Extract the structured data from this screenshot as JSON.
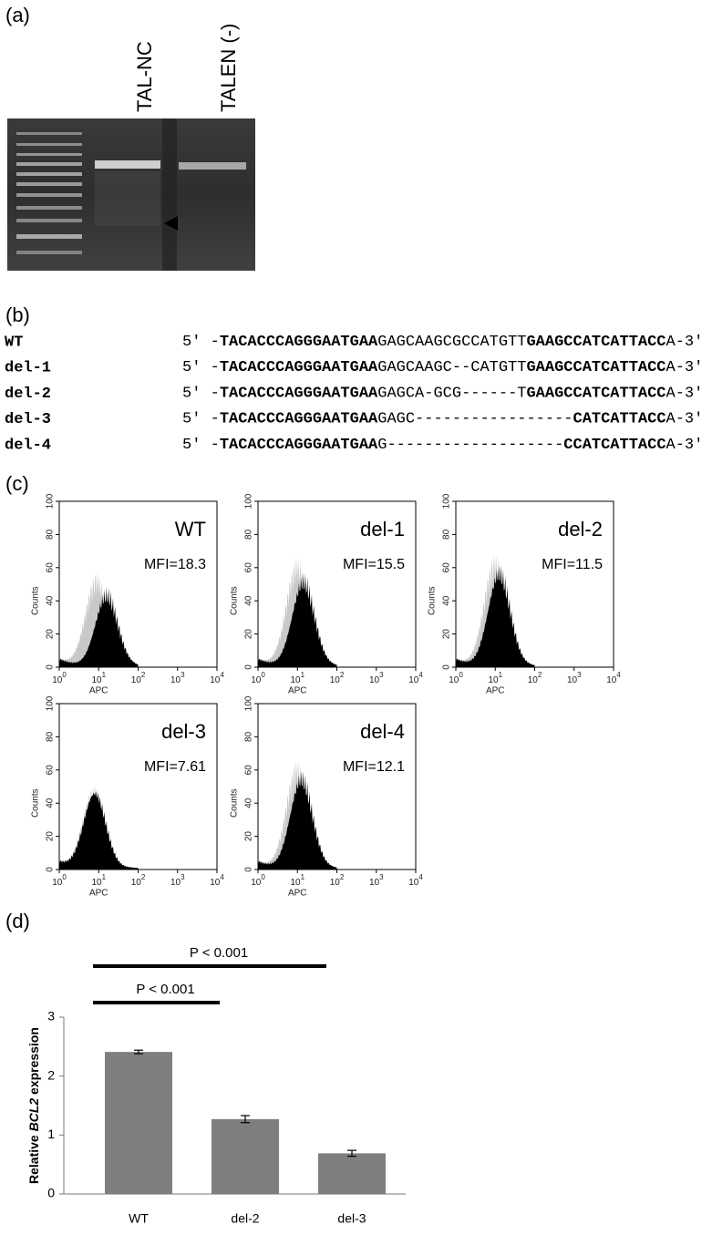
{
  "panel_labels": [
    "(a)",
    "(b)",
    "(c)",
    "(d)"
  ],
  "gel": {
    "lanes": [
      "TAL-NC",
      "TALEN (-)"
    ]
  },
  "sequences": [
    {
      "name": "WT",
      "segments": [
        {
          "text": "5′ -",
          "bold": false
        },
        {
          "text": "TACACCCAGGGAATGAA",
          "bold": true
        },
        {
          "text": "GAGCAAGCGCCATGTT",
          "bold": false
        },
        {
          "text": "GAAGCCATCATTACC",
          "bold": true
        },
        {
          "text": "A-3′",
          "bold": false
        }
      ]
    },
    {
      "name": "del-1",
      "segments": [
        {
          "text": "5′ -",
          "bold": false
        },
        {
          "text": "TACACCCAGGGAATGAA",
          "bold": true
        },
        {
          "text": "GAGCAAGC--CATGTT",
          "bold": false
        },
        {
          "text": "GAAGCCATCATTACC",
          "bold": true
        },
        {
          "text": "A-3′",
          "bold": false
        }
      ]
    },
    {
      "name": "del-2",
      "segments": [
        {
          "text": "5′ -",
          "bold": false
        },
        {
          "text": "TACACCCAGGGAATGAA",
          "bold": true
        },
        {
          "text": "GAGCA-GCG------T",
          "bold": false
        },
        {
          "text": "GAAGCCATCATTACC",
          "bold": true
        },
        {
          "text": "A-3′",
          "bold": false
        }
      ]
    },
    {
      "name": "del-3",
      "segments": [
        {
          "text": "5′ -",
          "bold": false
        },
        {
          "text": "TACACCCAGGGAATGAA",
          "bold": true
        },
        {
          "text": "GAGC-----------------",
          "bold": false
        },
        {
          "text": "CATCATTACC",
          "bold": true
        },
        {
          "text": "A-3′",
          "bold": false
        }
      ]
    },
    {
      "name": "del-4",
      "segments": [
        {
          "text": "5′ -",
          "bold": false
        },
        {
          "text": "TACACCCAGGGAATGAA",
          "bold": true
        },
        {
          "text": "G-------------------",
          "bold": false
        },
        {
          "text": "CCATCATTACC",
          "bold": true
        },
        {
          "text": "A-3′",
          "bold": false
        }
      ]
    }
  ],
  "flow": {
    "y_axis_label": "Counts",
    "x_axis_label": "APC",
    "yticks": [
      0,
      20,
      40,
      60,
      80,
      100
    ],
    "xticks": [
      {
        "base": "10",
        "exp": "0"
      },
      {
        "base": "10",
        "exp": "1"
      },
      {
        "base": "10",
        "exp": "2"
      },
      {
        "base": "10",
        "exp": "3"
      },
      {
        "base": "10",
        "exp": "4"
      }
    ],
    "panels": [
      {
        "name": "WT",
        "mfi": "MFI=18.3"
      },
      {
        "name": "del-1",
        "mfi": "MFI=15.5"
      },
      {
        "name": "del-2",
        "mfi": "MFI=11.5"
      },
      {
        "name": "del-3",
        "mfi": "MFI=7.61"
      },
      {
        "name": "del-4",
        "mfi": "MFI=12.1"
      }
    ]
  },
  "chart_data": {
    "type": "bar",
    "ylabel": [
      {
        "text": "Relative ",
        "italic": false
      },
      {
        "text": "BCL2",
        "italic": true
      },
      {
        "text": " expression",
        "italic": false
      }
    ],
    "categories": [
      "WT",
      "del-2",
      "del-3"
    ],
    "values": [
      2.41,
      1.27,
      0.69
    ],
    "errors": [
      0.03,
      0.06,
      0.05
    ],
    "color": "#7f7f7f",
    "ylim": [
      0,
      3
    ],
    "yticks": [
      0,
      1,
      2,
      3
    ],
    "annotations": [
      {
        "text": "P < 0.001",
        "from": 0,
        "to": 1
      },
      {
        "text": "P < 0.001",
        "from": 0,
        "to": 2
      }
    ]
  }
}
